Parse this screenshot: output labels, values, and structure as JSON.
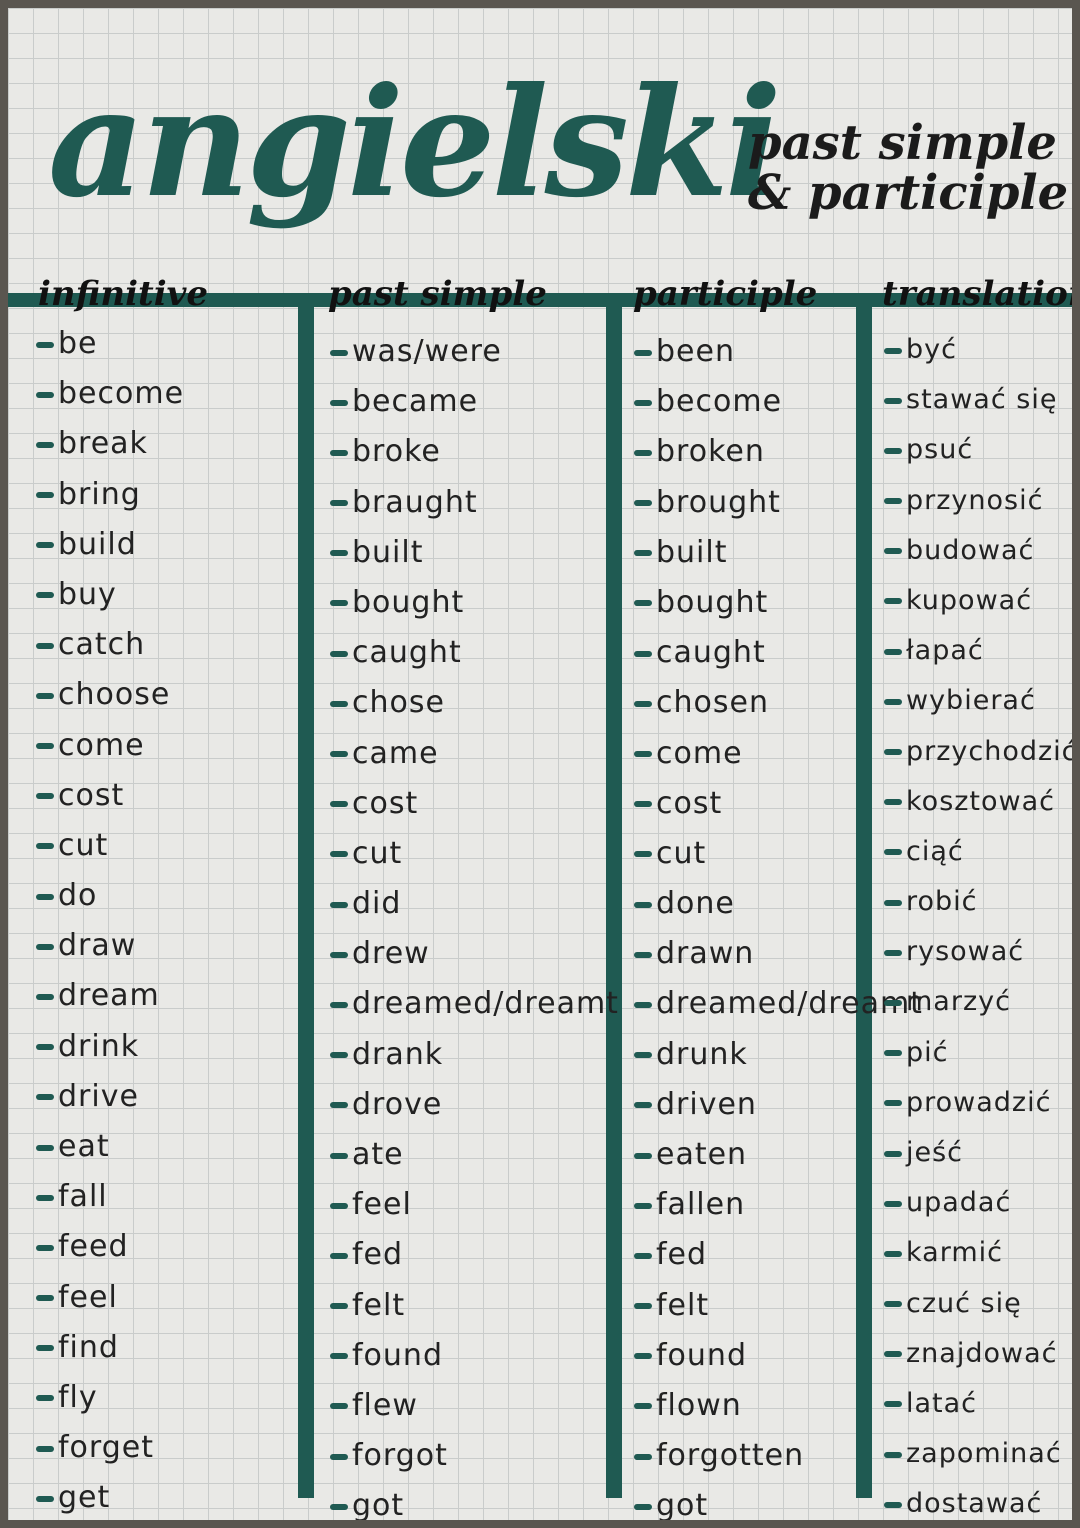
{
  "title": "angielski",
  "subtitle": [
    "past simple",
    "& participle"
  ],
  "headers": [
    "infinitive",
    "past simple",
    "participle",
    "translation"
  ],
  "accent_color": "#1f5a52",
  "rows": [
    [
      "be",
      "was/were",
      "been",
      "być"
    ],
    [
      "become",
      "became",
      "become",
      "stawać się"
    ],
    [
      "break",
      "broke",
      "broken",
      "psuć"
    ],
    [
      "bring",
      "braught",
      "brought",
      "przynosić"
    ],
    [
      "build",
      "built",
      "built",
      "budować"
    ],
    [
      "buy",
      "bought",
      "bought",
      "kupować"
    ],
    [
      "catch",
      "caught",
      "caught",
      "łapać"
    ],
    [
      "choose",
      "chose",
      "chosen",
      "wybierać"
    ],
    [
      "come",
      "came",
      "come",
      "przychodzić"
    ],
    [
      "cost",
      "cost",
      "cost",
      "kosztować"
    ],
    [
      "cut",
      "cut",
      "cut",
      "ciąć"
    ],
    [
      "do",
      "did",
      "done",
      "robić"
    ],
    [
      "draw",
      "drew",
      "drawn",
      "rysować"
    ],
    [
      "dream",
      "dreamed/dreamt",
      "dreamed/dreamt",
      "marzyć"
    ],
    [
      "drink",
      "drank",
      "drunk",
      "pić"
    ],
    [
      "drive",
      "drove",
      "driven",
      "prowadzić"
    ],
    [
      "eat",
      "ate",
      "eaten",
      "jeść"
    ],
    [
      "fall",
      "feel",
      "fallen",
      "upadać"
    ],
    [
      "feed",
      "fed",
      "fed",
      "karmić"
    ],
    [
      "feel",
      "felt",
      "felt",
      "czuć się"
    ],
    [
      "find",
      "found",
      "found",
      "znajdować"
    ],
    [
      "fly",
      "flew",
      "flown",
      "latać"
    ],
    [
      "forget",
      "forgot",
      "forgotten",
      "zapominać"
    ],
    [
      "get",
      "got",
      "got",
      "dostawać"
    ]
  ]
}
